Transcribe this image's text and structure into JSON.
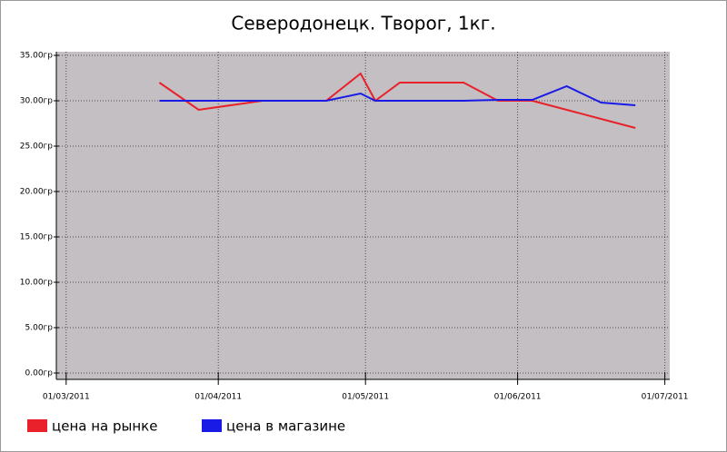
{
  "chart_data": {
    "type": "line",
    "title": "Северодонецк. Творог, 1кг.",
    "x": [
      "2011-03-20",
      "2011-03-28",
      "2011-04-10",
      "2011-04-23",
      "2011-04-30",
      "2011-05-03",
      "2011-05-08",
      "2011-05-21",
      "2011-05-28",
      "2011-06-04",
      "2011-06-11",
      "2011-06-18",
      "2011-06-25"
    ],
    "series": [
      {
        "name": "цена на рынке",
        "color": "#e8212a",
        "values": [
          32,
          29,
          30,
          30,
          33,
          30,
          32,
          32,
          30,
          30,
          29,
          28,
          27
        ]
      },
      {
        "name": "цена в магазине",
        "color": "#1a1ae6",
        "values": [
          30,
          30,
          30,
          30,
          30.8,
          30,
          30,
          30,
          30.1,
          30.1,
          31.6,
          29.8,
          29.5
        ]
      }
    ],
    "xlim": [
      "2011-02-27",
      "2011-07-02"
    ],
    "xticks": [
      {
        "value": "2011-03-01",
        "label": "01/03/2011"
      },
      {
        "value": "2011-04-01",
        "label": "01/04/2011"
      },
      {
        "value": "2011-05-01",
        "label": "01/05/2011"
      },
      {
        "value": "2011-06-01",
        "label": "01/06/2011"
      },
      {
        "value": "2011-07-01",
        "label": "01/07/2011"
      }
    ],
    "ylim": [
      -0.7,
      35.4
    ],
    "yticks": [
      {
        "value": 0,
        "label": "0.00гр"
      },
      {
        "value": 5,
        "label": "5.00гр"
      },
      {
        "value": 10,
        "label": "10.00гр"
      },
      {
        "value": 15,
        "label": "15.00гр"
      },
      {
        "value": 20,
        "label": "20.00гр"
      },
      {
        "value": 25,
        "label": "25.00гр"
      },
      {
        "value": 30,
        "label": "30.00гр"
      },
      {
        "value": 35,
        "label": "35.00гр"
      }
    ],
    "grid": true,
    "legend": "bottom"
  }
}
